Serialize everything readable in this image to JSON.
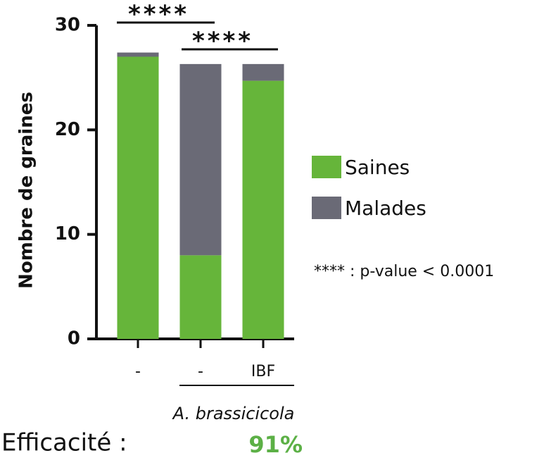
{
  "chart_data": {
    "type": "stacked_bar",
    "y_label": "Nombre de graines",
    "categories": [
      "-",
      "-",
      "IBF"
    ],
    "group_label": "A. brassicicola",
    "series": [
      {
        "name": "Saines",
        "color": "#66b53a",
        "values": [
          27,
          8,
          24.7
        ]
      },
      {
        "name": "Malades",
        "color": "#6a6a76",
        "values": [
          0.4,
          18.3,
          1.6
        ]
      }
    ],
    "ylim": [
      0,
      30
    ],
    "yticks": [
      0,
      10,
      20,
      30
    ],
    "significance": [
      "****",
      "****"
    ],
    "note": "**** : p-value < 0.0001",
    "efficacy_label": "Efficacité :",
    "efficacy": "91%"
  }
}
